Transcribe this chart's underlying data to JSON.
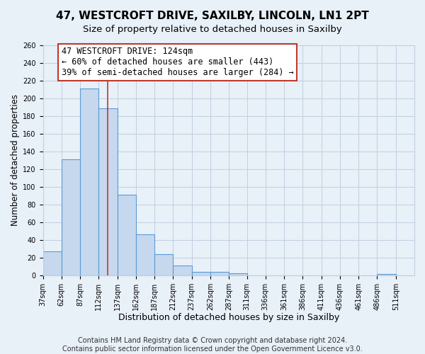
{
  "title": "47, WESTCROFT DRIVE, SAXILBY, LINCOLN, LN1 2PT",
  "subtitle": "Size of property relative to detached houses in Saxilby",
  "xlabel": "Distribution of detached houses by size in Saxilby",
  "ylabel": "Number of detached properties",
  "bar_edges": [
    37,
    62,
    87,
    112,
    137,
    162,
    187,
    212,
    237,
    262,
    287,
    311,
    336,
    361,
    386,
    411,
    436,
    461,
    486,
    511,
    536
  ],
  "bar_heights": [
    27,
    131,
    211,
    189,
    91,
    46,
    24,
    11,
    4,
    4,
    2,
    0,
    0,
    0,
    0,
    0,
    0,
    0,
    1,
    0
  ],
  "bar_color": "#c5d8ed",
  "bar_edge_color": "#5b9bd5",
  "bar_linewidth": 0.8,
  "vline_x": 124,
  "vline_color": "#c0392b",
  "vline_linewidth": 1.2,
  "annotation_lines": [
    "47 WESTCROFT DRIVE: 124sqm",
    "← 60% of detached houses are smaller (443)",
    "39% of semi-detached houses are larger (284) →"
  ],
  "annotation_fontsize": 8.5,
  "annotation_box_color": "white",
  "annotation_box_edgecolor": "#c0392b",
  "ylim": [
    0,
    260
  ],
  "yticks": [
    0,
    20,
    40,
    60,
    80,
    100,
    120,
    140,
    160,
    180,
    200,
    220,
    240,
    260
  ],
  "grid_color": "#c0d0e0",
  "background_color": "#e8f0f8",
  "footer_line1": "Contains HM Land Registry data © Crown copyright and database right 2024.",
  "footer_line2": "Contains public sector information licensed under the Open Government Licence v3.0.",
  "title_fontsize": 11,
  "subtitle_fontsize": 9.5,
  "xlabel_fontsize": 9,
  "ylabel_fontsize": 8.5,
  "tick_fontsize": 7,
  "footer_fontsize": 7
}
